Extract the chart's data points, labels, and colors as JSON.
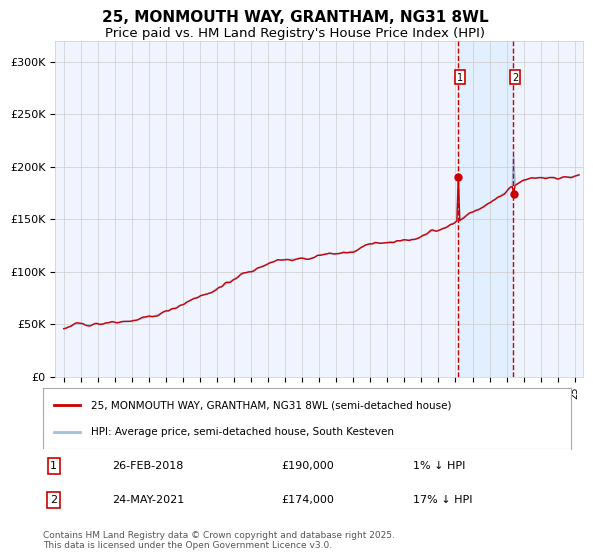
{
  "title": "25, MONMOUTH WAY, GRANTHAM, NG31 8WL",
  "subtitle": "Price paid vs. HM Land Registry's House Price Index (HPI)",
  "legend_line1": "25, MONMOUTH WAY, GRANTHAM, NG31 8WL (semi-detached house)",
  "legend_line2": "HPI: Average price, semi-detached house, South Kesteven",
  "annotation1_label": "1",
  "annotation1_date": "26-FEB-2018",
  "annotation1_price": 190000,
  "annotation1_text": "1% ↓ HPI",
  "annotation2_label": "2",
  "annotation2_date": "24-MAY-2021",
  "annotation2_price": 174000,
  "annotation2_text": "17% ↓ HPI",
  "annotation1_year": 2018.15,
  "annotation2_year": 2021.39,
  "ylabel_ticks": [
    "£0",
    "£50K",
    "£100K",
    "£150K",
    "£200K",
    "£250K",
    "£300K"
  ],
  "ylabel_values": [
    0,
    50000,
    100000,
    150000,
    200000,
    250000,
    300000
  ],
  "ylim": [
    0,
    320000
  ],
  "xlim_start": 1994.5,
  "xlim_end": 2025.5,
  "background_color": "#ffffff",
  "plot_bg_color": "#f0f4ff",
  "grid_color": "#cccccc",
  "hpi_line_color": "#a0c0e0",
  "price_line_color": "#cc0000",
  "dashed_line_color": "#cc0000",
  "shade_color": "#ddeeff",
  "marker_color": "#cc0000",
  "footnote": "Contains HM Land Registry data © Crown copyright and database right 2025.\nThis data is licensed under the Open Government Licence v3.0.",
  "font_color": "#333333"
}
